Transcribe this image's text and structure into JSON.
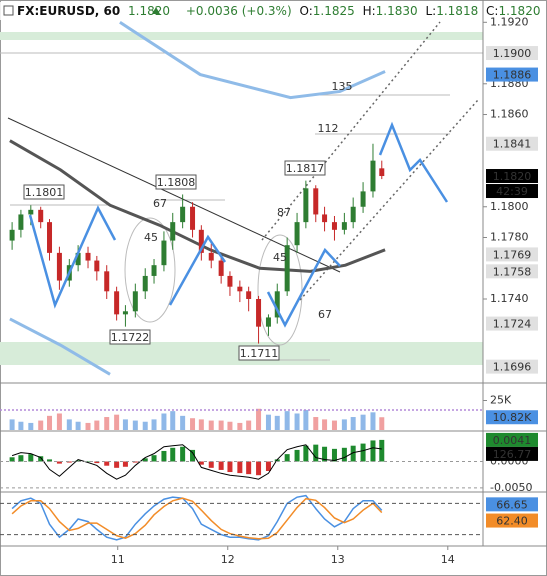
{
  "header": {
    "symbol": "FX:EURUSD, 60",
    "price": "1.1820",
    "change": "+0.0036 (+0.3%)",
    "ohlc": [
      {
        "key": "O:",
        "value": "1.1825"
      },
      {
        "key": "H:",
        "value": "1.1830"
      },
      {
        "key": "L:",
        "value": "1.1818"
      },
      {
        "key": "C:",
        "value": "1.1820"
      }
    ]
  },
  "chart_data": {
    "type": "candlestick",
    "xlim": [
      9.93,
      14.32
    ],
    "xticks": [
      11,
      12,
      13,
      14
    ],
    "ylim": [
      1.1686,
      1.1928
    ],
    "yticks": [
      {
        "value": 1.192,
        "label": "1.1920"
      },
      {
        "value": 1.188,
        "label": "1.1880"
      },
      {
        "value": 1.186,
        "label": "1.1860"
      },
      {
        "value": 1.18,
        "label": "1.1800"
      },
      {
        "value": 1.178,
        "label": "1.1780"
      },
      {
        "value": 1.174,
        "label": "1.1740"
      }
    ],
    "up_color": "#2e7d32",
    "down_color": "#c62828",
    "candles": {
      "x": [
        10.04,
        10.12,
        10.21,
        10.3,
        10.38,
        10.47,
        10.56,
        10.64,
        10.73,
        10.81,
        10.9,
        10.99,
        11.07,
        11.16,
        11.25,
        11.33,
        11.42,
        11.5,
        11.59,
        11.68,
        11.76,
        11.85,
        11.94,
        12.02,
        12.11,
        12.19,
        12.28,
        12.37,
        12.45,
        12.54,
        12.63,
        12.71,
        12.8,
        12.88,
        12.97,
        13.06,
        13.14,
        13.23,
        13.32,
        13.4
      ],
      "open": [
        1.1778,
        1.1785,
        1.1795,
        1.1798,
        1.179,
        1.177,
        1.1752,
        1.1762,
        1.177,
        1.1765,
        1.1758,
        1.1745,
        1.173,
        1.1732,
        1.1745,
        1.1755,
        1.1762,
        1.1778,
        1.179,
        1.18,
        1.1785,
        1.177,
        1.1765,
        1.1755,
        1.1748,
        1.1745,
        1.174,
        1.1722,
        1.1728,
        1.1745,
        1.1775,
        1.179,
        1.1812,
        1.1795,
        1.179,
        1.1785,
        1.179,
        1.18,
        1.181,
        1.1825
      ],
      "high": [
        1.179,
        1.1798,
        1.1801,
        1.18,
        1.1792,
        1.1774,
        1.1766,
        1.1775,
        1.1774,
        1.1768,
        1.1762,
        1.1748,
        1.1736,
        1.175,
        1.176,
        1.1766,
        1.1784,
        1.1796,
        1.1808,
        1.1803,
        1.1788,
        1.1776,
        1.1768,
        1.1758,
        1.1752,
        1.1748,
        1.1742,
        1.173,
        1.175,
        1.178,
        1.1796,
        1.1817,
        1.1814,
        1.18,
        1.1794,
        1.1796,
        1.1806,
        1.1816,
        1.1841,
        1.183
      ],
      "low": [
        1.1772,
        1.178,
        1.1788,
        1.1786,
        1.1765,
        1.1746,
        1.1748,
        1.1758,
        1.176,
        1.1752,
        1.174,
        1.1726,
        1.1722,
        1.1728,
        1.174,
        1.175,
        1.1758,
        1.1772,
        1.1786,
        1.178,
        1.1765,
        1.176,
        1.175,
        1.1742,
        1.1738,
        1.1732,
        1.1711,
        1.1716,
        1.1724,
        1.1742,
        1.177,
        1.1786,
        1.179,
        1.1784,
        1.1778,
        1.1782,
        1.1786,
        1.1796,
        1.1806,
        1.1818
      ],
      "close": [
        1.1785,
        1.1795,
        1.1798,
        1.179,
        1.177,
        1.1752,
        1.1762,
        1.177,
        1.1765,
        1.1758,
        1.1745,
        1.173,
        1.1732,
        1.1745,
        1.1755,
        1.1762,
        1.1778,
        1.179,
        1.18,
        1.1785,
        1.177,
        1.1765,
        1.1755,
        1.1748,
        1.1745,
        1.174,
        1.1722,
        1.1728,
        1.1745,
        1.1775,
        1.179,
        1.1812,
        1.1795,
        1.179,
        1.1785,
        1.179,
        1.18,
        1.181,
        1.183,
        1.182
      ]
    },
    "overlays": [
      {
        "color": "#555555",
        "width": 3,
        "x": [
          10.02,
          10.48,
          10.93,
          11.38,
          11.84,
          12.29,
          12.75,
          13.07,
          13.43
        ],
        "values": [
          1.1843,
          1.1824,
          1.1801,
          1.1788,
          1.1772,
          1.176,
          1.1758,
          1.1762,
          1.1772
        ]
      },
      {
        "color": "#8fbbe8",
        "width": 3,
        "x": [
          11.02,
          11.75,
          12.57,
          13.02,
          13.43
        ],
        "values": [
          1.192,
          1.1886,
          1.1871,
          1.1875,
          1.1888
        ]
      },
      {
        "color": "#8fbbe8",
        "width": 3,
        "x": [
          10.02,
          10.48,
          10.93
        ],
        "values": [
          1.1727,
          1.171,
          1.1691
        ]
      }
    ],
    "price_labels": [
      {
        "value": 1.19,
        "label": "1.1900",
        "bg": "#e0e0e0",
        "fg": "#000000"
      },
      {
        "value": 1.1886,
        "label": "1.1886",
        "bg": "#4a90e2",
        "fg": "#ffffff"
      },
      {
        "value": 1.1841,
        "label": "1.1841",
        "bg": "#e0e0e0",
        "fg": "#000000"
      },
      {
        "value": 1.182,
        "label": "1.1820",
        "bg": "#000000",
        "fg": "#ffffff"
      },
      {
        "value": 1.1769,
        "label": "1.1769",
        "bg": "#e0e0e0",
        "fg": "#000000"
      },
      {
        "value": 1.1758,
        "label": "1.1758",
        "bg": "#e0e0e0",
        "fg": "#000000"
      },
      {
        "value": 1.1724,
        "label": "1.1724",
        "bg": "#e0e0e0",
        "fg": "#000000"
      },
      {
        "value": 1.1696,
        "label": "1.1696",
        "bg": "#e0e0e0",
        "fg": "#000000"
      }
    ],
    "countdown": "42:39",
    "annotations": [
      "1.1801",
      "1.1808",
      "1.1817",
      "1.1722",
      "1.1711",
      "135",
      "112",
      "67",
      "45",
      "87",
      "45",
      "67"
    ],
    "volume": {
      "ylim": [
        0,
        39000
      ],
      "yticks": [
        {
          "value": 25000,
          "label": "25K"
        }
      ],
      "up_color": "#8fb8e8",
      "down_color": "#f0a0a0",
      "values": [
        9000,
        7000,
        6000,
        8000,
        12000,
        14000,
        9000,
        7000,
        6000,
        8000,
        11000,
        13000,
        9000,
        8000,
        7000,
        9000,
        14000,
        16000,
        12000,
        10000,
        9000,
        8000,
        8000,
        7000,
        6000,
        8000,
        18000,
        13000,
        12000,
        16000,
        14000,
        17000,
        11000,
        9000,
        8000,
        9000,
        11000,
        13000,
        15000,
        10820
      ],
      "last_label": {
        "value": 10820,
        "label": "10.82K"
      }
    },
    "macd": {
      "ylim": [
        -0.0056,
        0.0056
      ],
      "y2lim": [
        -300,
        300
      ],
      "yticks": [
        {
          "value": 0,
          "label": "0.0000"
        },
        {
          "value": -0.005,
          "label": "-0.0050"
        }
      ],
      "histogram": [
        0.0008,
        0.0012,
        0.0014,
        0.001,
        0.0004,
        -0.0004,
        -0.0002,
        0.0002,
        0.0001,
        -0.0003,
        -0.0008,
        -0.0012,
        -0.001,
        -0.0002,
        0.0006,
        0.0012,
        0.002,
        0.0026,
        0.0028,
        0.0022,
        -0.0006,
        -0.0012,
        -0.0016,
        -0.002,
        -0.0022,
        -0.0024,
        -0.0026,
        -0.0018,
        0.0004,
        0.0014,
        0.0022,
        0.003,
        0.0032,
        0.0028,
        0.0024,
        0.0026,
        0.003,
        0.0034,
        0.004,
        0.0041
      ],
      "line": [
        60,
        90,
        80,
        40,
        -80,
        -150,
        -60,
        20,
        -10,
        -40,
        -120,
        -180,
        -140,
        -40,
        40,
        80,
        150,
        160,
        170,
        90,
        -60,
        -90,
        -120,
        -140,
        -150,
        -160,
        -180,
        -120,
        20,
        120,
        150,
        170,
        40,
        20,
        10,
        40,
        90,
        110,
        140,
        126.77
      ],
      "up_color": "#1e8a2e",
      "down_color": "#d32f2f",
      "line_color": "#000000",
      "hist_label": {
        "value": 0.0041,
        "label": "0.0041"
      },
      "line_label": {
        "value": 126.77,
        "label": "126.77"
      }
    },
    "stoch": {
      "ylim": [
        0,
        100
      ],
      "levels": [
        20,
        80
      ],
      "k_color": "#4a90e2",
      "d_color": "#f28c28",
      "k": [
        70,
        85,
        90,
        80,
        40,
        15,
        30,
        50,
        45,
        30,
        15,
        10,
        15,
        40,
        60,
        75,
        88,
        92,
        90,
        70,
        40,
        30,
        20,
        15,
        15,
        12,
        10,
        18,
        45,
        80,
        92,
        95,
        70,
        50,
        35,
        45,
        70,
        85,
        85,
        66.65
      ],
      "d": [
        60,
        75,
        85,
        85,
        70,
        45,
        28,
        32,
        42,
        42,
        30,
        18,
        13,
        22,
        38,
        58,
        74,
        85,
        90,
        84,
        67,
        47,
        30,
        22,
        17,
        14,
        12,
        13,
        24,
        48,
        72,
        89,
        86,
        72,
        52,
        43,
        50,
        67,
        80,
        62.4
      ],
      "k_label": {
        "value": 66.65,
        "label": "66.65"
      },
      "d_label": {
        "value": 62.4,
        "label": "62.40"
      }
    }
  }
}
